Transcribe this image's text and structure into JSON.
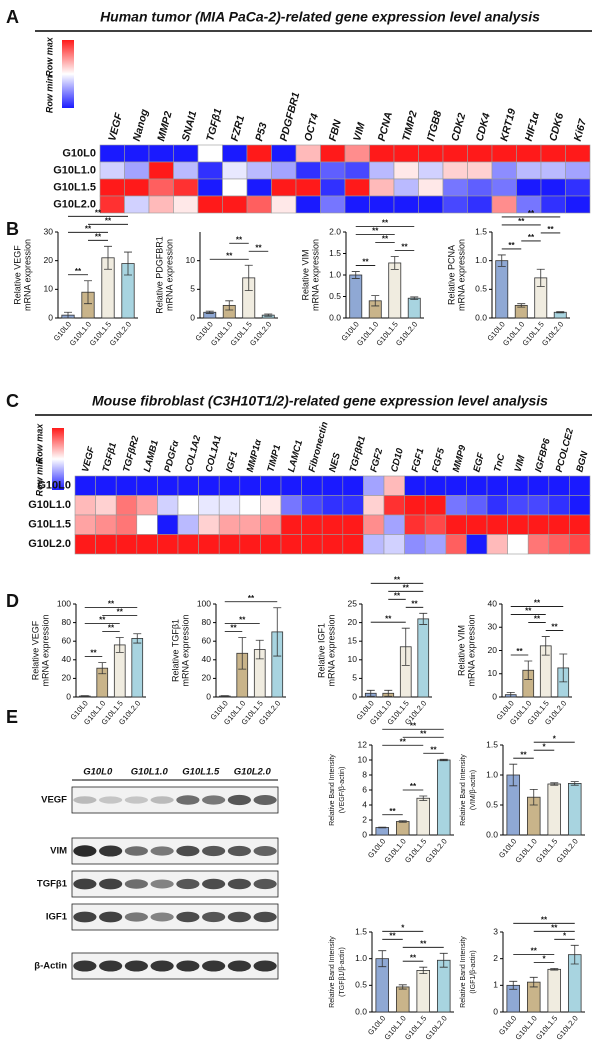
{
  "chart_data": [
    {
      "type": "heatmap",
      "panel": "A",
      "title": "Human tumor (MIA PaCa-2)-related gene expression level analysis",
      "legend_labels": [
        "Row max",
        "Row min"
      ],
      "columns": [
        "VEGF",
        "Nanog",
        "MMP2",
        "SNAI1",
        "TGFβ1",
        "FZR1",
        "P53",
        "PDGFBR1",
        "OCT4",
        "FBN",
        "VIM",
        "PCNA",
        "TIMP2",
        "ITGB8",
        "CDK2",
        "CDK4",
        "KRT19",
        "HIF1α",
        "CDK6",
        "Ki67"
      ],
      "rows": [
        "G10L0",
        "G10L1.0",
        "G10L1.5",
        "G10L2.0"
      ],
      "values": [
        [
          -1,
          -1,
          -1,
          -1,
          0,
          -1,
          1,
          -1,
          0.3,
          1,
          0.5,
          1,
          1,
          1,
          1,
          1,
          1,
          1,
          1,
          1
        ],
        [
          -0.2,
          -0.4,
          1,
          -0.3,
          -0.9,
          -0.1,
          -0.3,
          -0.4,
          -0.9,
          -0.7,
          -0.8,
          -0.3,
          0.1,
          -0.2,
          0.2,
          0.2,
          -0.5,
          -0.3,
          -0.3,
          -0.4
        ],
        [
          1,
          1,
          0.7,
          0.9,
          -1,
          0,
          -1,
          1,
          1,
          -0.9,
          1,
          0.3,
          -0.3,
          0.1,
          -0.6,
          -0.7,
          -0.6,
          -1,
          -1,
          -0.9
        ],
        [
          0.9,
          -0.2,
          0.3,
          0.1,
          1,
          1,
          0.7,
          0.1,
          -1,
          -0.6,
          -1,
          -1,
          -1,
          -1,
          -0.8,
          -0.9,
          0.5,
          -0.6,
          -0.9,
          -1
        ]
      ]
    },
    {
      "type": "bar",
      "panel": "B",
      "ylabel": [
        "Relative VEGF",
        "mRNA expression"
      ],
      "categories": [
        "G10L0",
        "G10L1.0",
        "G10L1.5",
        "G10L2.0"
      ],
      "colors": [
        "#8fa8d4",
        "#c9b48a",
        "#f0ece0",
        "#a8d4e0"
      ],
      "values": [
        1,
        9,
        21,
        19
      ],
      "errors": [
        1,
        4,
        4,
        4
      ],
      "ylim": [
        0,
        30
      ],
      "yticks": [
        0,
        10,
        20,
        30
      ],
      "annotations": [
        {
          "text": "**",
          "from": "G10L0",
          "to": "G10L1.0"
        },
        {
          "text": "**",
          "from": "G10L1.0",
          "to": "G10L1.5"
        },
        {
          "text": "**",
          "from": "G10L0",
          "to": "G10L1.5"
        },
        {
          "text": "**",
          "from": "G10L1.0",
          "to": "G10L2.0"
        },
        {
          "text": "**",
          "from": "G10L0",
          "to": "G10L2.0"
        }
      ]
    },
    {
      "type": "bar",
      "ylabel": [
        "Relative PDGFBR1",
        "mRNA expression"
      ],
      "categories": [
        "G10L0",
        "G10L1.0",
        "G10L1.5",
        "G10L2.0"
      ],
      "colors": [
        "#8fa8d4",
        "#c9b48a",
        "#f0ece0",
        "#a8d4e0"
      ],
      "values": [
        1,
        2.2,
        7,
        0.5
      ],
      "errors": [
        0.2,
        0.8,
        2.2,
        0.2
      ],
      "ylim": [
        0,
        15
      ],
      "yticks": [
        0,
        5,
        10
      ],
      "annotations": [
        {
          "text": "**",
          "from": "G10L0",
          "to": "G10L1.5"
        },
        {
          "text": "**",
          "from": "G10L1.5",
          "to": "G10L2.0"
        },
        {
          "text": "**",
          "from": "G10L1.0",
          "to": "G10L1.5"
        }
      ]
    },
    {
      "type": "bar",
      "ylabel": [
        "Relative VIM",
        "mRNA expression"
      ],
      "categories": [
        "G10L0",
        "G10L1.0",
        "G10L1.5",
        "G10L2.0"
      ],
      "colors": [
        "#8fa8d4",
        "#c9b48a",
        "#f0ece0",
        "#a8d4e0"
      ],
      "values": [
        1,
        0.4,
        1.28,
        0.46
      ],
      "errors": [
        0.08,
        0.12,
        0.15,
        0.03
      ],
      "ylim": [
        0,
        2
      ],
      "yticks": [
        {
          "value": 0,
          "label": "0.0"
        },
        {
          "value": 0.5,
          "label": "0.5"
        },
        {
          "value": 1,
          "label": "1.0"
        },
        {
          "value": 1.5,
          "label": "1.5"
        },
        {
          "value": 2,
          "label": "2.0"
        }
      ],
      "annotations": [
        {
          "text": "**",
          "from": "G10L0",
          "to": "G10L1.0"
        },
        {
          "text": "**",
          "from": "G10L1.5",
          "to": "G10L2.0"
        },
        {
          "text": "**",
          "from": "G10L1.0",
          "to": "G10L1.5"
        },
        {
          "text": "**",
          "from": "G10L0",
          "to": "G10L1.5"
        },
        {
          "text": "**",
          "from": "G10L0",
          "to": "G10L2.0"
        }
      ]
    },
    {
      "type": "bar",
      "ylabel": [
        "Relative PCNA",
        "mRNA expression"
      ],
      "categories": [
        "G10L0",
        "G10L1.0",
        "G10L1.5",
        "G10L2.0"
      ],
      "colors": [
        "#8fa8d4",
        "#c9b48a",
        "#f0ece0",
        "#a8d4e0"
      ],
      "values": [
        1,
        0.22,
        0.7,
        0.1
      ],
      "errors": [
        0.1,
        0.03,
        0.15,
        0.01
      ],
      "ylim": [
        0,
        1.5
      ],
      "yticks": [
        {
          "value": 0,
          "label": "0.0"
        },
        {
          "value": 0.5,
          "label": "0.5"
        },
        {
          "value": 1,
          "label": "1.0"
        },
        {
          "value": 1.5,
          "label": "1.5"
        }
      ],
      "annotations": [
        {
          "text": "**",
          "from": "G10L0",
          "to": "G10L1.0"
        },
        {
          "text": "**",
          "from": "G10L1.0",
          "to": "G10L1.5"
        },
        {
          "text": "**",
          "from": "G10L1.5",
          "to": "G10L2.0"
        },
        {
          "text": "**",
          "from": "G10L0",
          "to": "G10L1.5"
        },
        {
          "text": "**",
          "from": "G10L0",
          "to": "G10L2.0"
        }
      ]
    },
    {
      "type": "heatmap",
      "panel": "C",
      "title": "Mouse fibroblast (C3H10T1/2)-related gene expression level analysis",
      "legend_labels": [
        "Row max",
        "Row min"
      ],
      "columns": [
        "VEGF",
        "TGFβ1",
        "TGFβR2",
        "LAMB1",
        "PDGFα",
        "COL1A2",
        "COL1A1",
        "IGF1",
        "MMP1α",
        "TIMP1",
        "LAMC1",
        "Fibronectin",
        "NES",
        "TGFβR1",
        "FGF2",
        "CD10",
        "FGF1",
        "FGF5",
        "MMP9",
        "EGF",
        "TnC",
        "VIM",
        "IGFBP6",
        "PCOLCE2",
        "BGN"
      ],
      "rows": [
        "G10L0",
        "G10L1.0",
        "G10L1.5",
        "G10L2.0"
      ],
      "values": [
        [
          -1,
          -1,
          -1,
          -1,
          -1,
          -1,
          -1,
          -1,
          -1,
          -1,
          -1,
          -1,
          -1,
          -1,
          -0.4,
          0.3,
          -1,
          -1,
          -1,
          -1,
          -1,
          -1,
          -1,
          -1,
          -1
        ],
        [
          0.3,
          0.2,
          0.6,
          0.4,
          -0.2,
          0,
          -0.1,
          -0.1,
          0,
          0.1,
          -0.6,
          -0.8,
          -0.9,
          -0.9,
          0.2,
          0.9,
          1,
          1,
          -0.6,
          -0.7,
          -0.9,
          -0.8,
          -0.8,
          -0.9,
          -1
        ],
        [
          0.4,
          0.5,
          0.6,
          0,
          -1,
          -0.3,
          0.2,
          0.4,
          0.4,
          0.5,
          1,
          1,
          1,
          1,
          0.5,
          -0.4,
          0.9,
          0.8,
          1,
          1,
          1,
          1,
          1,
          1,
          1
        ],
        [
          1,
          1,
          1,
          1,
          1,
          1,
          1,
          1,
          1,
          1,
          1,
          1,
          1,
          1,
          -0.3,
          -0.2,
          -0.5,
          -0.4,
          0.7,
          -1,
          0.3,
          0,
          0.6,
          0.7,
          0.8
        ]
      ]
    },
    {
      "type": "bar",
      "panel": "D",
      "ylabel": [
        "Relative VEGF",
        "mRNA expression"
      ],
      "categories": [
        "G10L0",
        "G10L1.0",
        "G10L1.5",
        "G10L2.0"
      ],
      "colors": [
        "#8fa8d4",
        "#c9b48a",
        "#f0ece0",
        "#a8d4e0"
      ],
      "values": [
        1,
        31,
        56,
        63
      ],
      "errors": [
        0.5,
        6,
        8,
        5
      ],
      "ylim": [
        0,
        100
      ],
      "yticks": [
        0,
        20,
        40,
        60,
        80,
        100
      ],
      "annotations": [
        {
          "text": "**",
          "from": "G10L0",
          "to": "G10L1.0"
        },
        {
          "text": "**",
          "from": "G10L1.0",
          "to": "G10L1.5"
        },
        {
          "text": "**",
          "from": "G10L0",
          "to": "G10L1.5"
        },
        {
          "text": "**",
          "from": "G10L1.0",
          "to": "G10L2.0"
        },
        {
          "text": "**",
          "from": "G10L0",
          "to": "G10L2.0"
        }
      ]
    },
    {
      "type": "bar",
      "ylabel": [
        "Relative TGFβ1",
        "mRNA expression"
      ],
      "categories": [
        "G10L0",
        "G10L1.0",
        "G10L1.5",
        "G10L2.0"
      ],
      "colors": [
        "#8fa8d4",
        "#c9b48a",
        "#f0ece0",
        "#a8d4e0"
      ],
      "values": [
        1,
        47,
        51,
        70
      ],
      "errors": [
        0.5,
        17,
        10,
        26
      ],
      "ylim": [
        0,
        100
      ],
      "yticks": [
        0,
        20,
        40,
        60,
        80,
        100
      ],
      "annotations": [
        {
          "text": "**",
          "from": "G10L0",
          "to": "G10L1.0"
        },
        {
          "text": "**",
          "from": "G10L0",
          "to": "G10L1.5"
        },
        {
          "text": "**",
          "from": "G10L0",
          "to": "G10L2.0"
        }
      ]
    },
    {
      "type": "bar",
      "ylabel": [
        "Relative IGF1",
        "mRNA expression"
      ],
      "categories": [
        "G10L0",
        "G10L1.0",
        "G10L1.5",
        "G10L2.0"
      ],
      "colors": [
        "#8fa8d4",
        "#c9b48a",
        "#f0ece0",
        "#a8d4e0"
      ],
      "values": [
        1,
        1,
        13.5,
        21
      ],
      "errors": [
        0.8,
        0.8,
        5,
        1.5
      ],
      "ylim": [
        0,
        25
      ],
      "yticks": [
        0,
        5,
        10,
        15,
        20,
        25
      ],
      "annotations": [
        {
          "text": "**",
          "from": "G10L0",
          "to": "G10L1.5"
        },
        {
          "text": "**",
          "from": "G10L1.5",
          "to": "G10L2.0"
        },
        {
          "text": "**",
          "from": "G10L1.0",
          "to": "G10L1.5"
        },
        {
          "text": "**",
          "from": "G10L1.0",
          "to": "G10L2.0"
        },
        {
          "text": "**",
          "from": "G10L0",
          "to": "G10L2.0"
        }
      ]
    },
    {
      "type": "bar",
      "ylabel": [
        "Relative VIM",
        "mRNA expression"
      ],
      "categories": [
        "G10L0",
        "G10L1.0",
        "G10L1.5",
        "G10L2.0"
      ],
      "colors": [
        "#8fa8d4",
        "#c9b48a",
        "#f0ece0",
        "#a8d4e0"
      ],
      "values": [
        1,
        11.5,
        22,
        12.5
      ],
      "errors": [
        1,
        4,
        4,
        6
      ],
      "ylim": [
        0,
        40
      ],
      "yticks": [
        0,
        10,
        20,
        30,
        40
      ],
      "annotations": [
        {
          "text": "**",
          "from": "G10L0",
          "to": "G10L1.0"
        },
        {
          "text": "**",
          "from": "G10L1.5",
          "to": "G10L2.0"
        },
        {
          "text": "**",
          "from": "G10L1.0",
          "to": "G10L1.5"
        },
        {
          "text": "**",
          "from": "G10L0",
          "to": "G10L1.5"
        },
        {
          "text": "**",
          "from": "G10L0",
          "to": "G10L2.0"
        }
      ]
    },
    {
      "type": "bar",
      "ylabel": [
        "Relative Band Intensity",
        "(VEGF/β-actin)"
      ],
      "categories": [
        "G10L0",
        "G10L1.0",
        "G10L1.5",
        "G10L2.0"
      ],
      "colors": [
        "#8fa8d4",
        "#c9b48a",
        "#f0ece0",
        "#a8d4e0"
      ],
      "values": [
        1,
        1.8,
        4.9,
        10
      ],
      "errors": [
        0.05,
        0.1,
        0.3,
        0.1
      ],
      "ylim": [
        0,
        12
      ],
      "yticks": [
        0,
        2,
        4,
        6,
        8,
        10,
        12
      ],
      "annotations": [
        {
          "text": "**",
          "from": "G10L0",
          "to": "G10L1.0"
        },
        {
          "text": "**",
          "from": "G10L1.0",
          "to": "G10L1.5"
        },
        {
          "text": "**",
          "from": "G10L1.5",
          "to": "G10L2.0"
        },
        {
          "text": "**",
          "from": "G10L0",
          "to": "G10L1.5"
        },
        {
          "text": "**",
          "from": "G10L1.0",
          "to": "G10L2.0"
        },
        {
          "text": "**",
          "from": "G10L0",
          "to": "G10L2.0"
        }
      ]
    },
    {
      "type": "bar",
      "ylabel": [
        "Relative Band Intensity",
        "(VIM/β-actin)"
      ],
      "categories": [
        "G10L0",
        "G10L1.0",
        "G10L1.5",
        "G10L2.0"
      ],
      "colors": [
        "#8fa8d4",
        "#c9b48a",
        "#f0ece0",
        "#a8d4e0"
      ],
      "values": [
        1,
        0.63,
        0.85,
        0.86
      ],
      "errors": [
        0.18,
        0.13,
        0.02,
        0.03
      ],
      "ylim": [
        0,
        1.5
      ],
      "yticks": [
        {
          "value": 0,
          "label": "0.0"
        },
        {
          "value": 0.5,
          "label": "0.5"
        },
        {
          "value": 1,
          "label": "1.0"
        },
        {
          "value": 1.5,
          "label": "1.5"
        }
      ],
      "annotations": [
        {
          "text": "**",
          "from": "G10L0",
          "to": "G10L1.0"
        },
        {
          "text": "*",
          "from": "G10L1.0",
          "to": "G10L1.5"
        },
        {
          "text": "*",
          "from": "G10L1.0",
          "to": "G10L2.0"
        }
      ]
    },
    {
      "type": "bar",
      "ylabel": [
        "Relative Band Intensity",
        "(TGFβ1/β-actin)"
      ],
      "categories": [
        "G10L0",
        "G10L1.0",
        "G10L1.5",
        "G10L2.0"
      ],
      "colors": [
        "#8fa8d4",
        "#c9b48a",
        "#f0ece0",
        "#a8d4e0"
      ],
      "values": [
        1,
        0.47,
        0.78,
        0.97
      ],
      "errors": [
        0.15,
        0.04,
        0.06,
        0.13
      ],
      "ylim": [
        0,
        1.5
      ],
      "yticks": [
        {
          "value": 0,
          "label": "0.0"
        },
        {
          "value": 0.5,
          "label": "0.5"
        },
        {
          "value": 1,
          "label": "1.0"
        },
        {
          "value": 1.5,
          "label": "1.5"
        }
      ],
      "annotations": [
        {
          "text": "**",
          "from": "G10L1.0",
          "to": "G10L1.5"
        },
        {
          "text": "**",
          "from": "G10L1.0",
          "to": "G10L2.0"
        },
        {
          "text": "**",
          "from": "G10L0",
          "to": "G10L1.0"
        },
        {
          "text": "*",
          "from": "G10L0",
          "to": "G10L1.5"
        }
      ]
    },
    {
      "type": "bar",
      "ylabel": [
        "Relative Band Intensity",
        "(IGF1/β-actin)"
      ],
      "categories": [
        "G10L0",
        "G10L1.0",
        "G10L1.5",
        "G10L2.0"
      ],
      "colors": [
        "#8fa8d4",
        "#c9b48a",
        "#f0ece0",
        "#a8d4e0"
      ],
      "values": [
        1,
        1.12,
        1.6,
        2.15
      ],
      "errors": [
        0.15,
        0.18,
        0.03,
        0.35
      ],
      "ylim": [
        0,
        3
      ],
      "yticks": [
        0,
        1,
        2,
        3
      ],
      "annotations": [
        {
          "text": "*",
          "from": "G10L1.0",
          "to": "G10L1.5"
        },
        {
          "text": "**",
          "from": "G10L0",
          "to": "G10L1.5"
        },
        {
          "text": "*",
          "from": "G10L1.5",
          "to": "G10L2.0"
        },
        {
          "text": "**",
          "from": "G10L1.0",
          "to": "G10L2.0"
        },
        {
          "text": "**",
          "from": "G10L0",
          "to": "G10L2.0"
        }
      ]
    }
  ],
  "blot": {
    "panel": "E",
    "groups": [
      "G10L0",
      "G10L1.0",
      "G10L1.5",
      "G10L2.0"
    ],
    "rows": [
      "VEGF",
      "VIM",
      "TGFβ1",
      "IGF1",
      "β-Actin"
    ]
  }
}
